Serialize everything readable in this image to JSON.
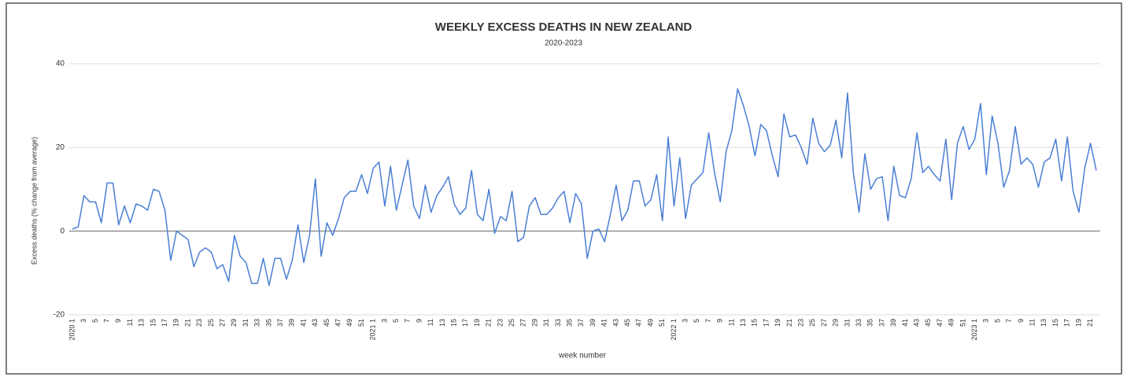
{
  "chart_data": {
    "type": "line",
    "title": "WEEKLY EXCESS DEATHS IN NEW ZEALAND",
    "subtitle": "2020-2023",
    "x_label": "week number",
    "y_label": "Excess deaths (% change from average)",
    "color": "#4a7fd4",
    "title_color": "#e0302a",
    "grid": true,
    "ylim": [
      -20,
      40
    ],
    "yticks": [
      -20,
      0,
      20,
      40
    ],
    "categories": [
      "2020 1",
      null,
      "3",
      null,
      "5",
      null,
      "7",
      null,
      "9",
      null,
      "11",
      null,
      "13",
      null,
      "15",
      null,
      "17",
      null,
      "19",
      null,
      "21",
      null,
      "23",
      null,
      "25",
      null,
      "27",
      null,
      "29",
      null,
      "31",
      null,
      "33",
      null,
      "35",
      null,
      "37",
      null,
      "39",
      null,
      "41",
      null,
      "43",
      null,
      "45",
      null,
      "47",
      null,
      "49",
      null,
      "51",
      null,
      "2021 1",
      null,
      "3",
      null,
      "5",
      null,
      "7",
      null,
      "9",
      null,
      "11",
      null,
      "13",
      null,
      "15",
      null,
      "17",
      null,
      "19",
      null,
      "21",
      null,
      "23",
      null,
      "25",
      null,
      "27",
      null,
      "29",
      null,
      "31",
      null,
      "33",
      null,
      "35",
      null,
      "37",
      null,
      "39",
      null,
      "41",
      null,
      "43",
      null,
      "45",
      null,
      "47",
      null,
      "49",
      null,
      "51",
      null,
      "2022 1",
      null,
      "3",
      null,
      "5",
      null,
      "7",
      null,
      "9",
      null,
      "11",
      null,
      "13",
      null,
      "15",
      null,
      "17",
      null,
      "19",
      null,
      "21",
      null,
      "23",
      null,
      "25",
      null,
      "27",
      null,
      "29",
      null,
      "31",
      null,
      "33",
      null,
      "35",
      null,
      "37",
      null,
      "39",
      null,
      "41",
      null,
      "43",
      null,
      "45",
      null,
      "47",
      null,
      "49",
      null,
      "51",
      null,
      "2023 1",
      null,
      "3",
      null,
      "5",
      null,
      "7",
      null,
      "9",
      null,
      "11",
      null,
      "13",
      null,
      "15",
      null,
      "17",
      null,
      "19",
      null,
      "21",
      null
    ],
    "values": [
      0.5,
      1,
      8.5,
      7,
      7,
      2,
      11.5,
      11.5,
      1.5,
      6,
      2,
      6.5,
      6,
      5,
      10,
      9.5,
      5,
      -7,
      0,
      -1,
      -2,
      -8.5,
      -5,
      -4,
      -5,
      -9,
      -8,
      -12,
      -1,
      -6,
      -7.5,
      -12.5,
      -12.5,
      -6.5,
      -13,
      -6.5,
      -6.5,
      -11.5,
      -7,
      1.5,
      -7.5,
      -1,
      12.5,
      -6,
      2,
      -1,
      3,
      8,
      9.5,
      9.5,
      13.5,
      9,
      15,
      16.5,
      6,
      15.5,
      5,
      11,
      17,
      6,
      3,
      11,
      4.5,
      8.5,
      10.5,
      13,
      6.5,
      4,
      5.5,
      14.5,
      4,
      2.5,
      10,
      -0.5,
      3.5,
      2.5,
      9.5,
      -2.5,
      -1.5,
      6,
      8,
      4,
      4,
      5.5,
      8,
      9.5,
      2,
      9,
      6.5,
      -6.5,
      0,
      0.5,
      -2.5,
      4,
      11,
      2.5,
      5,
      12,
      12,
      6,
      7.5,
      13.5,
      2.5,
      22.5,
      6,
      17.5,
      3,
      11,
      12.5,
      14,
      23.5,
      14,
      7,
      19,
      24,
      34,
      30,
      25,
      18,
      25.5,
      24,
      18,
      13,
      28,
      22.5,
      23,
      20,
      16,
      27,
      21,
      19,
      20.5,
      26.5,
      17.5,
      33,
      14,
      4.5,
      18.5,
      10,
      12.5,
      13,
      2.5,
      15.5,
      8.5,
      8,
      12.5,
      23.5,
      14,
      15.5,
      13.5,
      12,
      22,
      7.5,
      21,
      25,
      19.5,
      22,
      30.5,
      13.5,
      27.5,
      21,
      10.5,
      14.5,
      25,
      16,
      17.5,
      16,
      10.5,
      16.5,
      17.5,
      22,
      12,
      22.5,
      9.5,
      4.5,
      15,
      21,
      14.5
    ]
  }
}
